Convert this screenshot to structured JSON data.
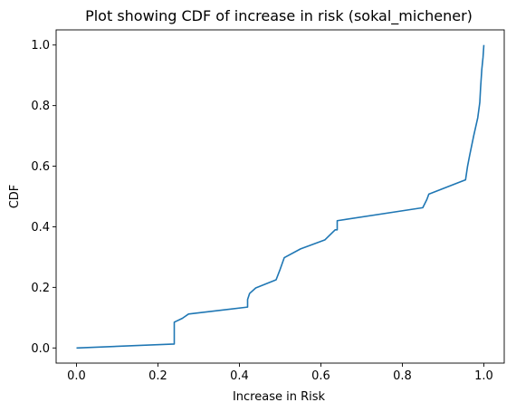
{
  "chart_data": {
    "type": "line",
    "title": "Plot showing CDF of increase in risk (sokal_michener)",
    "xlabel": "Increase in Risk",
    "ylabel": "CDF",
    "xlim": [
      -0.05,
      1.05
    ],
    "ylim": [
      -0.05,
      1.05
    ],
    "xticks": [
      0.0,
      0.2,
      0.4,
      0.6,
      0.8,
      1.0
    ],
    "xtick_labels": [
      "0.0",
      "0.2",
      "0.4",
      "0.6",
      "0.8",
      "1.0"
    ],
    "yticks": [
      0.0,
      0.2,
      0.4,
      0.6,
      0.8,
      1.0
    ],
    "ytick_labels": [
      "0.0",
      "0.2",
      "0.4",
      "0.6",
      "0.8",
      "1.0"
    ],
    "grid": false,
    "series": [
      {
        "color": "#1f77b4",
        "x": [
          0.0,
          0.24,
          0.24,
          0.26,
          0.275,
          0.42,
          0.42,
          0.425,
          0.44,
          0.49,
          0.5,
          0.51,
          0.55,
          0.61,
          0.635,
          0.64,
          0.64,
          0.85,
          0.86,
          0.865,
          0.955,
          0.96,
          0.965,
          0.975,
          0.985,
          0.99,
          0.992,
          0.995,
          0.998,
          1.0
        ],
        "y": [
          0.0,
          0.013,
          0.085,
          0.098,
          0.112,
          0.135,
          0.16,
          0.18,
          0.198,
          0.225,
          0.26,
          0.298,
          0.327,
          0.357,
          0.39,
          0.39,
          0.42,
          0.463,
          0.49,
          0.508,
          0.555,
          0.6,
          0.635,
          0.7,
          0.76,
          0.81,
          0.86,
          0.92,
          0.96,
          1.0
        ]
      }
    ]
  }
}
